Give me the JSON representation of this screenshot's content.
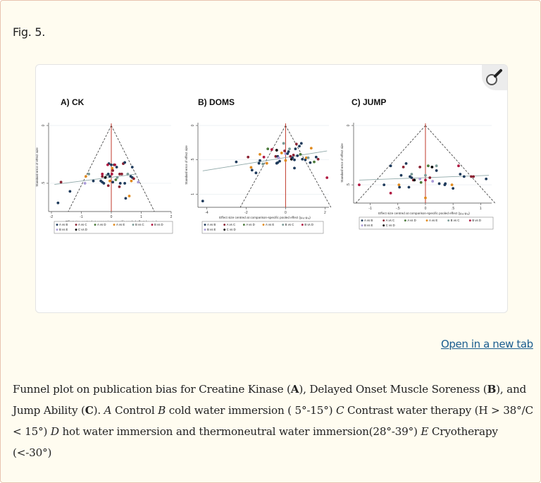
{
  "figure": {
    "label": "Fig. 5.",
    "zoom_icon": "magnifier-icon",
    "open_link": "Open in a new tab"
  },
  "caption": {
    "t1": "Funnel plot on publication bias for Creatine Kinase (",
    "A": "A",
    "t2": "), Delayed Onset Muscle Soreness (",
    "B": "B",
    "t3": "), and Jump Ability (",
    "C": "C",
    "t4": "). ",
    "iA": "A",
    "t5": " Control ",
    "iB": "B",
    "t6": " cold water immersion ( 5°-15°) ",
    "iC": "C",
    "t7": " Contrast water therapy (H > 38°/C < 15°) ",
    "iD": "D",
    "t8": " hot water immersion and thermoneutral water immersion(28°-39°) ",
    "iE": "E",
    "t9": " Cryotherapy (<-30°)"
  },
  "legend": {
    "items": [
      {
        "label": "A vs B",
        "color": "#1f3b5c"
      },
      {
        "label": "A vs C",
        "color": "#8b2232"
      },
      {
        "label": "A vs D",
        "color": "#4a7a3a"
      },
      {
        "label": "A vs E",
        "color": "#e08a1e"
      },
      {
        "label": "B vs C",
        "color": "#7a9a96"
      },
      {
        "label": "B vs D",
        "color": "#b01740"
      },
      {
        "label": "B vs E",
        "color": "#a99ad8"
      },
      {
        "label": "C vs D",
        "color": "#000000"
      }
    ]
  },
  "panels": {
    "a": {
      "title": "A) CK",
      "ylabel": "Standard error of effect size",
      "xlabel": "Effect size centred at comparison-specific pooled effect (yᵢₓᵧ-μₓᵧ)",
      "xticks": [
        "-2",
        "-1",
        "0",
        "1",
        "2"
      ],
      "yticks": [
        "0",
        ".5"
      ]
    },
    "b": {
      "title": "B) DOMS",
      "ylabel": "Standard error of effect size",
      "xlabel": "Effect size centred at comparison-specific pooled effect (yᵢₓᵧ-μₓᵧ)",
      "xticks": [
        "-4",
        "-2",
        "0",
        "2"
      ],
      "yticks": [
        "0",
        ".5",
        "1"
      ]
    },
    "c": {
      "title": "C) JUMP",
      "ylabel": "Standard error of effect size",
      "xlabel": "Effect size centred at comparison-specific pooled effect (yᵢₓᵧ-μₓᵧ)",
      "xticks": [
        "-1",
        "-.5",
        "0",
        ".5",
        "1"
      ],
      "yticks": [
        "0",
        ".5"
      ]
    }
  },
  "chart_data": [
    {
      "type": "scatter",
      "title": "A) CK",
      "xlabel": "Effect size centred at comparison-specific pooled effect",
      "ylabel": "Standard error of effect size",
      "xlim": [
        -2,
        2
      ],
      "ylim": [
        0.72,
        0
      ],
      "legend_position": "bottom",
      "series_points": [
        [
          -1.78,
          0.67,
          0
        ],
        [
          -1.38,
          0.57,
          0
        ],
        [
          -1.68,
          0.49,
          1
        ],
        [
          -0.85,
          0.44,
          3
        ],
        [
          -0.75,
          0.42,
          4
        ],
        [
          -0.88,
          0.5,
          6
        ],
        [
          -0.6,
          0.48,
          0
        ],
        [
          -0.35,
          0.48,
          0
        ],
        [
          -0.3,
          0.49,
          0
        ],
        [
          -0.25,
          0.5,
          0
        ],
        [
          -0.3,
          0.44,
          1
        ],
        [
          -0.3,
          0.42,
          5
        ],
        [
          -0.2,
          0.45,
          7
        ],
        [
          -0.15,
          0.43,
          4
        ],
        [
          -0.1,
          0.42,
          0
        ],
        [
          -0.05,
          0.44,
          0
        ],
        [
          -0.08,
          0.33,
          0
        ],
        [
          -0.12,
          0.34,
          5
        ],
        [
          0.1,
          0.34,
          7
        ],
        [
          0.12,
          0.34,
          5
        ],
        [
          0,
          0.34,
          0
        ],
        [
          0.03,
          0.37,
          3
        ],
        [
          0.18,
          0.36,
          0
        ],
        [
          0.05,
          0.39,
          1
        ],
        [
          0.02,
          0.42,
          5
        ],
        [
          0.15,
          0.47,
          2
        ],
        [
          0.2,
          0.45,
          4
        ],
        [
          0.28,
          0.42,
          1
        ],
        [
          0.3,
          0.5,
          0
        ],
        [
          0.27,
          0.53,
          1
        ],
        [
          0.05,
          0.49,
          0
        ],
        [
          -0.05,
          0.48,
          3
        ],
        [
          -0.1,
          0.52,
          1
        ],
        [
          0.4,
          0.33,
          1
        ],
        [
          0.45,
          0.32,
          0
        ],
        [
          0.45,
          0.5,
          0
        ],
        [
          0.55,
          0.42,
          4
        ],
        [
          0.65,
          0.44,
          0
        ],
        [
          0.67,
          0.48,
          3
        ],
        [
          0.7,
          0.45,
          0
        ],
        [
          0.75,
          0.46,
          1
        ],
        [
          0.7,
          0.36,
          0
        ],
        [
          0.9,
          0.49,
          6
        ],
        [
          0.6,
          0.61,
          3
        ],
        [
          0.48,
          0.63,
          0
        ],
        [
          0.35,
          0.42,
          1
        ]
      ],
      "egger_line": {
        "x1": -1.9,
        "y1": 0.51,
        "x2": 0.85,
        "y2": 0.42
      }
    },
    {
      "type": "scatter",
      "title": "B) DOMS",
      "xlabel": "Effect size centred at comparison-specific pooled effect",
      "ylabel": "Standard error of effect size",
      "xlim": [
        -4.3,
        2.2
      ],
      "ylim": [
        1.15,
        0
      ],
      "legend_position": "bottom",
      "series_points": [
        [
          -4.2,
          1.1,
          0
        ],
        [
          -2.5,
          0.53,
          0
        ],
        [
          -1.9,
          0.46,
          1
        ],
        [
          -1.75,
          0.61,
          3
        ],
        [
          -1.7,
          0.65,
          0
        ],
        [
          -1.5,
          0.69,
          0
        ],
        [
          -1.35,
          0.55,
          0
        ],
        [
          -1.3,
          0.51,
          0
        ],
        [
          -1.3,
          0.42,
          3
        ],
        [
          -1.15,
          0.56,
          4
        ],
        [
          -1.1,
          0.46,
          5
        ],
        [
          -0.95,
          0.55,
          3
        ],
        [
          -0.9,
          0.34,
          2
        ],
        [
          -0.7,
          0.35,
          5
        ],
        [
          -0.5,
          0.45,
          1
        ],
        [
          -0.45,
          0.36,
          7
        ],
        [
          -0.4,
          0.45,
          0
        ],
        [
          -0.4,
          0.54,
          0
        ],
        [
          -0.3,
          0.52,
          0
        ],
        [
          -0.45,
          0.55,
          0
        ],
        [
          -0.35,
          0.47,
          6
        ],
        [
          -0.2,
          0.4,
          3
        ],
        [
          -0.1,
          0.26,
          4
        ],
        [
          -0.05,
          0.37,
          1
        ],
        [
          0,
          0.41,
          6
        ],
        [
          0,
          0.51,
          3
        ],
        [
          0.1,
          0.41,
          0
        ],
        [
          0.15,
          0.38,
          0
        ],
        [
          0.2,
          0.34,
          4
        ],
        [
          0.25,
          0.45,
          1
        ],
        [
          0.3,
          0.49,
          7
        ],
        [
          0.35,
          0.47,
          0
        ],
        [
          0.4,
          0.43,
          1
        ],
        [
          0.45,
          0.5,
          0
        ],
        [
          0.5,
          0.34,
          0
        ],
        [
          0.45,
          0.62,
          0
        ],
        [
          0.55,
          0.27,
          1
        ],
        [
          0.6,
          0.44,
          0
        ],
        [
          0.7,
          0.3,
          0
        ],
        [
          0.8,
          0.26,
          0
        ],
        [
          0.85,
          0.49,
          0
        ],
        [
          1.0,
          0.5,
          0
        ],
        [
          1.05,
          0.47,
          3
        ],
        [
          1.15,
          0.47,
          4
        ],
        [
          1.25,
          0.54,
          0
        ],
        [
          1.3,
          0.33,
          3
        ],
        [
          1.45,
          0.53,
          2
        ],
        [
          1.55,
          0.46,
          0
        ],
        [
          1.65,
          0.49,
          1
        ],
        [
          2.1,
          0.76,
          5
        ],
        [
          0.75,
          0.42,
          2
        ]
      ],
      "egger_line": {
        "x1": -4.2,
        "y1": 0.66,
        "x2": 2.1,
        "y2": 0.37
      }
    },
    {
      "type": "scatter",
      "title": "C) JUMP",
      "xlabel": "Effect size centred at comparison-specific pooled effect",
      "ylabel": "Standard error of effect size",
      "xlim": [
        -1.25,
        1.2
      ],
      "ylim": [
        0.63,
        0
      ],
      "legend_position": "bottom",
      "series_points": [
        [
          -1.2,
          0.5,
          5
        ],
        [
          -0.75,
          0.5,
          0
        ],
        [
          -0.63,
          0.34,
          0
        ],
        [
          -0.63,
          0.57,
          5
        ],
        [
          -0.48,
          0.5,
          3
        ],
        [
          -0.47,
          0.52,
          0
        ],
        [
          -0.44,
          0.42,
          0
        ],
        [
          -0.4,
          0.35,
          1
        ],
        [
          -0.35,
          0.32,
          0
        ],
        [
          -0.3,
          0.52,
          0
        ],
        [
          -0.28,
          0.43,
          0
        ],
        [
          -0.25,
          0.44,
          0
        ],
        [
          -0.25,
          0.41,
          4
        ],
        [
          -0.22,
          0.46,
          1
        ],
        [
          -0.2,
          0.46,
          7
        ],
        [
          -0.1,
          0.45,
          6
        ],
        [
          -0.1,
          0.35,
          1
        ],
        [
          -0.08,
          0.48,
          2
        ],
        [
          0,
          0.42,
          4
        ],
        [
          0,
          0.46,
          5
        ],
        [
          0,
          0.61,
          3
        ],
        [
          0.05,
          0.34,
          2
        ],
        [
          0.08,
          0.44,
          1
        ],
        [
          0.12,
          0.35,
          7
        ],
        [
          0.13,
          0.47,
          6
        ],
        [
          0.2,
          0.34,
          4
        ],
        [
          0.2,
          0.38,
          0
        ],
        [
          0.25,
          0.49,
          0
        ],
        [
          0.35,
          0.5,
          0
        ],
        [
          0.36,
          0.49,
          0
        ],
        [
          0.48,
          0.5,
          3
        ],
        [
          0.5,
          0.53,
          0
        ],
        [
          0.6,
          0.34,
          5
        ],
        [
          0.63,
          0.41,
          0
        ],
        [
          0.7,
          0.43,
          0
        ],
        [
          0.83,
          0.43,
          1
        ],
        [
          0.87,
          0.43,
          1
        ],
        [
          1.1,
          0.45,
          0
        ]
      ],
      "egger_line": {
        "x1": -1.2,
        "y1": 0.46,
        "x2": 1.15,
        "y2": 0.42
      }
    }
  ]
}
